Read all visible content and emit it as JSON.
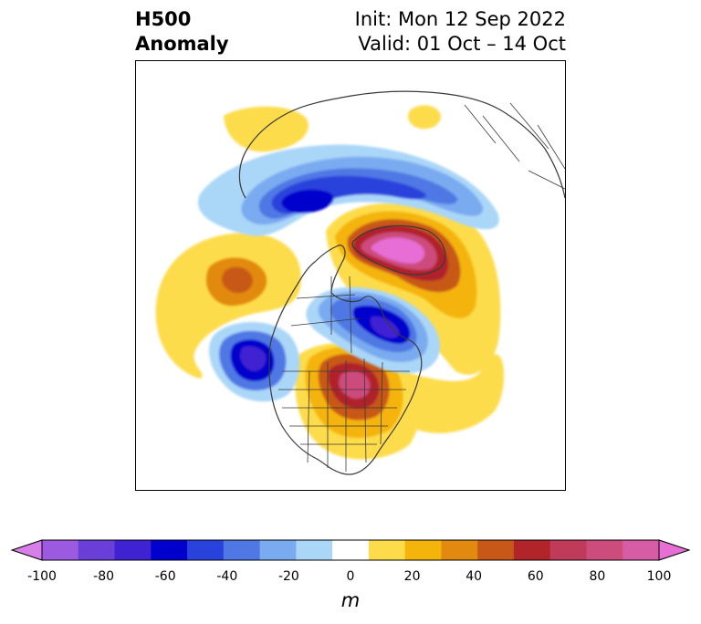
{
  "title": {
    "left": "H500\nAnomaly",
    "right": "Init: Mon 12 Sep 2022\nValid: 01 Oct – 14 Oct"
  },
  "colorbar": {
    "unit_label": "m",
    "ticks": [
      "-100",
      "-80",
      "-60",
      "-40",
      "-20",
      "0",
      "20",
      "40",
      "60",
      "80",
      "100"
    ],
    "levels": [
      -100,
      -90,
      -80,
      -70,
      -60,
      -50,
      -40,
      -30,
      -20,
      -10,
      10,
      20,
      30,
      40,
      50,
      60,
      70,
      80,
      90,
      100
    ],
    "colors": [
      "#d87ee8",
      "#9c5ae0",
      "#6a3fd8",
      "#3f22d2",
      "#0000cc",
      "#2a42dc",
      "#4f78e4",
      "#7aaaf0",
      "#aad6f8",
      "#ffffff",
      "#fddc4c",
      "#f4b40c",
      "#e28a10",
      "#c85818",
      "#b0242a",
      "#c03a5a",
      "#cc4c7c",
      "#d65ca6",
      "#e66ed4"
    ]
  },
  "anomalies": [
    {
      "name": "ridge-greenland",
      "sign": "positive",
      "peak_m": 100
    },
    {
      "name": "ridge-great-lakes",
      "sign": "positive",
      "peak_m": 70
    },
    {
      "name": "ridge-north-pacific",
      "sign": "positive",
      "peak_m": 40
    },
    {
      "name": "ridge-siberia",
      "sign": "positive",
      "peak_m": 20
    },
    {
      "name": "trough-arctic-canada",
      "sign": "negative",
      "peak_m": -70
    },
    {
      "name": "trough-siberian-arctic",
      "sign": "negative",
      "peak_m": -60
    },
    {
      "name": "trough-gulf-of-alaska",
      "sign": "negative",
      "peak_m": -70
    }
  ]
}
